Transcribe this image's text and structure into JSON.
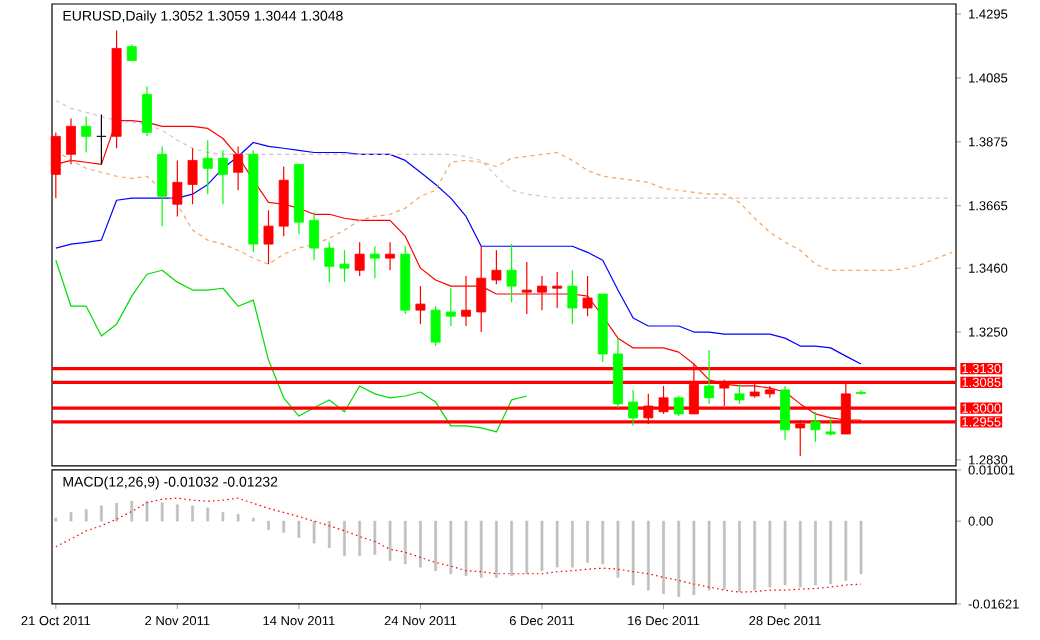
{
  "chart_data": [
    {
      "type": "candlestick",
      "title": "EURUSD,Daily  1.3052 1.3059 1.3044 1.3048",
      "categories": [
        null,
        null,
        null,
        null,
        null,
        null,
        null,
        null,
        null,
        null,
        null,
        null,
        null,
        null,
        null,
        null,
        null,
        null,
        null,
        null,
        null,
        null,
        null,
        null,
        null,
        null,
        null,
        null,
        null,
        null,
        null,
        null,
        null,
        null,
        null,
        null,
        null,
        null,
        null,
        null,
        null,
        null,
        null,
        null,
        null,
        null,
        null,
        null,
        null,
        null,
        null,
        null,
        null,
        null,
        null,
        null,
        null,
        null,
        null,
        null
      ],
      "ohlc": [
        [
          1.3768,
          1.3906,
          1.369,
          1.3893
        ],
        [
          1.3834,
          1.3952,
          1.3801,
          1.3926
        ],
        [
          1.3926,
          1.3958,
          1.384,
          1.3893
        ],
        [
          1.3893,
          1.3965,
          1.3801,
          1.3893
        ],
        [
          1.3893,
          1.4241,
          1.3854,
          1.4182
        ],
        [
          1.4188,
          1.4195,
          1.4142,
          1.4142
        ],
        [
          1.4031,
          1.4057,
          1.3893,
          1.3906
        ],
        [
          1.3834,
          1.386,
          1.3598,
          1.3696
        ],
        [
          1.367,
          1.3814,
          1.363,
          1.3742
        ],
        [
          1.3735,
          1.3854,
          1.367,
          1.3814
        ],
        [
          1.3821,
          1.388,
          1.3703,
          1.3788
        ],
        [
          1.3821,
          1.3847,
          1.367,
          1.3768
        ],
        [
          1.3775,
          1.386,
          1.3716,
          1.3834
        ],
        [
          1.3834,
          1.3847,
          1.3512,
          1.3539
        ],
        [
          1.3539,
          1.365,
          1.3473,
          1.3598
        ],
        [
          1.3598,
          1.3794,
          1.3565,
          1.3749
        ],
        [
          1.3801,
          1.3801,
          1.3571,
          1.3611
        ],
        [
          1.3617,
          1.3644,
          1.3486,
          1.3526
        ],
        [
          1.3526,
          1.3545,
          1.3414,
          1.3466
        ],
        [
          1.3473,
          1.3519,
          1.3414,
          1.346
        ],
        [
          1.3453,
          1.3545,
          1.3434,
          1.3506
        ],
        [
          1.3506,
          1.3532,
          1.3427,
          1.3493
        ],
        [
          1.3493,
          1.3545,
          1.3453,
          1.3506
        ],
        [
          1.3506,
          1.3532,
          1.3309,
          1.3322
        ],
        [
          1.3322,
          1.3401,
          1.3276,
          1.3342
        ],
        [
          1.3322,
          1.3335,
          1.3204,
          1.3217
        ],
        [
          1.3316,
          1.3394,
          1.327,
          1.3302
        ],
        [
          1.3302,
          1.3434,
          1.327,
          1.3322
        ],
        [
          1.3316,
          1.3532,
          1.325,
          1.3427
        ],
        [
          1.3421,
          1.3519,
          1.3407,
          1.3453
        ],
        [
          1.3453,
          1.3539,
          1.3348,
          1.3401
        ],
        [
          1.3381,
          1.348,
          1.3309,
          1.3388
        ],
        [
          1.3381,
          1.3434,
          1.3322,
          1.3401
        ],
        [
          1.3394,
          1.3447,
          1.3329,
          1.3401
        ],
        [
          1.3401,
          1.3453,
          1.3276,
          1.3329
        ],
        [
          1.3329,
          1.3434,
          1.3302,
          1.3362
        ],
        [
          1.3375,
          1.3375,
          1.3152,
          1.3178
        ],
        [
          1.3178,
          1.323,
          1.3001,
          1.3014
        ],
        [
          1.302,
          1.306,
          1.2942,
          1.2968
        ],
        [
          1.2968,
          1.3047,
          1.2948,
          1.3007
        ],
        [
          1.2988,
          1.3073,
          1.2981,
          1.3034
        ],
        [
          1.3034,
          1.304,
          1.2974,
          1.2981
        ],
        [
          1.2981,
          1.3145,
          1.2981,
          1.3079
        ],
        [
          1.3073,
          1.3191,
          1.3014,
          1.3034
        ],
        [
          1.3066,
          1.3093,
          1.3007,
          1.3079
        ],
        [
          1.3047,
          1.3079,
          1.3014,
          1.3027
        ],
        [
          1.304,
          1.3079,
          1.3034,
          1.3053
        ],
        [
          1.3047,
          1.3073,
          1.3034,
          1.306
        ],
        [
          1.306,
          1.3073,
          1.2896,
          1.2929
        ],
        [
          1.2935,
          1.2961,
          1.2843,
          1.2948
        ],
        [
          1.2955,
          1.2988,
          1.2889,
          1.2929
        ],
        [
          1.2922,
          1.2968,
          1.2909,
          1.2915
        ],
        [
          1.2915,
          1.3079,
          1.2915,
          1.3047
        ],
        [
          1.3052,
          1.3059,
          1.3044,
          1.3048
        ],
        null,
        null,
        null,
        null,
        null,
        null
      ],
      "colors": [
        "#ff0000",
        "#ff0000",
        "#00ff00",
        "#000000",
        "#ff0000",
        "#00ff00",
        "#00ff00",
        "#00ff00",
        "#ff0000",
        "#ff0000",
        "#00ff00",
        "#00ff00",
        "#ff0000",
        "#00ff00",
        "#ff0000",
        "#ff0000",
        "#00ff00",
        "#00ff00",
        "#00ff00",
        "#00ff00",
        "#ff0000",
        "#00ff00",
        "#ff0000",
        "#00ff00",
        "#ff0000",
        "#00ff00",
        "#00ff00",
        "#ff0000",
        "#ff0000",
        "#ff0000",
        "#00ff00",
        "#ff0000",
        "#ff0000",
        "#ff0000",
        "#00ff00",
        "#ff0000",
        "#00ff00",
        "#00ff00",
        "#00ff00",
        "#ff0000",
        "#ff0000",
        "#00ff00",
        "#ff0000",
        "#00ff00",
        "#ff0000",
        "#00ff00",
        "#ff0000",
        "#ff0000",
        "#00ff00",
        "#ff0000",
        "#00ff00",
        "#00ff00",
        "#ff0000",
        "#00ff00",
        null,
        null,
        null,
        null,
        null,
        null
      ],
      "series": [
        {
          "type": "line",
          "color": "#ff0000",
          "line_style": "solid",
          "values": [
            1.3801,
            1.3814,
            1.3808,
            1.3801,
            1.3945,
            1.3945,
            1.3939,
            1.3926,
            1.3926,
            1.3926,
            1.3919,
            1.3886,
            1.3827,
            1.3749,
            1.3676,
            1.367,
            1.3657,
            1.3637,
            1.3637,
            1.3624,
            1.3617,
            1.3617,
            1.3617,
            1.3565,
            1.346,
            1.3421,
            1.3401,
            1.3401,
            1.3401,
            1.3375,
            1.3375,
            1.3375,
            1.3375,
            1.3375,
            1.3375,
            1.3368,
            1.3302,
            1.323,
            1.3198,
            1.3198,
            1.3198,
            1.3184,
            1.3145,
            1.3093,
            1.3079,
            1.3073,
            1.3073,
            1.3066,
            1.3053,
            1.3014,
            1.2981,
            1.2968,
            1.2961,
            1.2961,
            null,
            null,
            null,
            null,
            null,
            null
          ]
        },
        {
          "type": "line",
          "color": "#0000ff",
          "line_style": "solid",
          "values": [
            1.3526,
            1.3539,
            1.3545,
            1.3552,
            1.3683,
            1.369,
            1.369,
            1.369,
            1.369,
            1.3703,
            1.3735,
            1.3788,
            1.3827,
            1.3873,
            1.386,
            1.3854,
            1.3847,
            1.384,
            1.384,
            1.384,
            1.3834,
            1.3834,
            1.3834,
            1.3814,
            1.3775,
            1.3735,
            1.369,
            1.363,
            1.3532,
            1.3532,
            1.3532,
            1.3532,
            1.3532,
            1.3532,
            1.3532,
            1.3512,
            1.3486,
            1.3388,
            1.3296,
            1.327,
            1.327,
            1.327,
            1.325,
            1.325,
            1.3243,
            1.3243,
            1.3243,
            1.3243,
            1.323,
            1.3204,
            1.3204,
            1.3198,
            1.3171,
            1.3145,
            null,
            null,
            null,
            null,
            null,
            null
          ]
        },
        {
          "type": "line",
          "color": "#00dd00",
          "line_style": "solid",
          "values": [
            1.3486,
            1.3335,
            1.3335,
            1.3237,
            1.3276,
            1.3368,
            1.344,
            1.3453,
            1.3414,
            1.3388,
            1.3388,
            1.3394,
            1.3335,
            1.3355,
            1.3158,
            1.3034,
            1.2974,
            1.3001,
            1.3027,
            1.2988,
            1.3073,
            1.3047,
            1.3034,
            1.304,
            1.3053,
            1.302,
            1.2942,
            1.2942,
            1.2935,
            1.2922,
            1.3027,
            1.304,
            null,
            null,
            null,
            null,
            null,
            null,
            null,
            null,
            null,
            null,
            null,
            null,
            null,
            null,
            null,
            null,
            null,
            null,
            null,
            null,
            null,
            null,
            null,
            null,
            null,
            null,
            null,
            null
          ]
        },
        {
          "type": "line",
          "color": "#f4a460",
          "line_style": "dashed",
          "values": [
            1.3847,
            1.3814,
            1.3788,
            1.3775,
            1.3762,
            1.3755,
            1.3762,
            1.3716,
            1.367,
            1.3585,
            1.3552,
            1.3539,
            1.3519,
            1.3493,
            1.3473,
            1.3506,
            1.3526,
            1.3539,
            1.3558,
            1.3585,
            1.3617,
            1.363,
            1.3637,
            1.3657,
            1.3696,
            1.3716,
            1.3808,
            1.3814,
            1.3808,
            1.3794,
            1.3821,
            1.3827,
            1.3834,
            1.384,
            1.3814,
            1.3781,
            1.3762,
            1.3755,
            1.3749,
            1.3742,
            1.3722,
            1.3716,
            1.3709,
            1.3703,
            1.3703,
            1.3676,
            1.3624,
            1.3578,
            1.3545,
            1.3519,
            1.3473,
            1.3453,
            1.3453,
            1.3453,
            1.3453,
            1.3453,
            1.346,
            1.3473,
            1.3493,
            1.3512
          ]
        },
        {
          "type": "line",
          "color": "#d8bfd8",
          "line_style": "dashed",
          "values": [
            1.4011,
            1.3985,
            1.3972,
            1.3958,
            1.3945,
            1.3939,
            1.3932,
            1.3913,
            1.388,
            1.3854,
            1.384,
            1.3834,
            1.3834,
            1.3834,
            1.3834,
            1.3834,
            1.3834,
            1.3834,
            1.3834,
            1.3834,
            1.3834,
            1.3834,
            1.3834,
            1.3834,
            1.3834,
            1.3834,
            1.3834,
            1.3827,
            1.3814,
            1.3762,
            1.3716,
            1.3703,
            1.3696,
            1.369,
            1.369,
            1.369,
            1.369,
            1.369,
            1.369,
            1.369,
            1.369,
            1.369,
            1.369,
            1.369,
            1.369,
            1.369,
            1.369,
            1.369,
            1.369,
            1.369,
            1.369,
            1.369,
            1.369,
            1.369,
            1.369,
            1.369,
            1.369,
            1.369,
            1.369,
            1.369
          ]
        }
      ],
      "ref_lines": [
        {
          "axis": "y",
          "value": 1.313,
          "label": "1.3130",
          "color": "#ff0000"
        },
        {
          "axis": "y",
          "value": 1.3085,
          "label": "1.3085",
          "color": "#ff0000"
        },
        {
          "axis": "y",
          "value": 1.3,
          "label": "1.3000",
          "color": "#ff0000"
        },
        {
          "axis": "y",
          "value": 1.2955,
          "label": "1.2955",
          "color": "#ff0000"
        }
      ],
      "ylim": [
        1.281,
        1.4328
      ],
      "yticks": [
        {
          "value": 1.283,
          "label": "1.2830"
        },
        {
          "value": 1.325,
          "label": "1.3250"
        },
        {
          "value": 1.346,
          "label": "1.3460"
        },
        1.3665,
        1.3875,
        1.4085,
        1.4295
      ],
      "tick_labels": "y"
    },
    {
      "type": "bar",
      "title": "MACD(12,26,9) -0.01032 -0.01232",
      "categories": [
        "21 Oct 2011",
        null,
        null,
        null,
        null,
        null,
        null,
        null,
        "2 Nov 2011",
        null,
        null,
        null,
        null,
        null,
        null,
        null,
        "14 Nov 2011",
        null,
        null,
        null,
        null,
        null,
        null,
        null,
        "24 Nov 2011",
        null,
        null,
        null,
        null,
        null,
        null,
        null,
        "6 Dec 2011",
        null,
        null,
        null,
        null,
        null,
        null,
        null,
        "16 Dec 2011",
        null,
        null,
        null,
        null,
        null,
        null,
        null,
        "28 Dec 2011",
        null,
        null,
        null,
        null,
        null,
        null,
        null,
        null,
        null,
        null,
        null
      ],
      "series": [
        {
          "type": "bar",
          "color": "#c0c0c0",
          "values": [
            0.0006,
            0.0017,
            0.0023,
            0.003,
            0.0035,
            0.0039,
            0.0039,
            0.0036,
            0.0032,
            0.003,
            0.0026,
            0.0017,
            0.0013,
            0.0006,
            -0.0017,
            -0.0022,
            -0.0032,
            -0.0043,
            -0.0052,
            -0.0068,
            -0.0068,
            -0.0065,
            -0.0077,
            -0.0084,
            -0.009,
            -0.0097,
            -0.0103,
            -0.0107,
            -0.011,
            -0.011,
            -0.0107,
            -0.0103,
            -0.0097,
            -0.009,
            -0.009,
            -0.0081,
            -0.0084,
            -0.011,
            -0.0125,
            -0.0135,
            -0.0142,
            -0.0148,
            -0.0144,
            -0.0135,
            -0.0133,
            -0.0138,
            -0.0135,
            -0.0129,
            -0.0125,
            -0.0129,
            -0.0125,
            -0.0123,
            -0.0116,
            -0.01032,
            null,
            null,
            null,
            null,
            null,
            null
          ]
        },
        {
          "type": "line",
          "color": "#ff0000",
          "line_style": "dotted",
          "values": [
            -0.005,
            -0.0035,
            -0.0019,
            -0.0009,
            0.0004,
            0.0019,
            0.0036,
            0.0043,
            0.0045,
            0.0041,
            0.0039,
            0.0041,
            0.0045,
            0.0035,
            0.0025,
            0.0017,
            0.0009,
            0.0,
            -0.0009,
            -0.0019,
            -0.003,
            -0.004,
            -0.0055,
            -0.0061,
            -0.0071,
            -0.0081,
            -0.0088,
            -0.0097,
            -0.0099,
            -0.0103,
            -0.0103,
            -0.0103,
            -0.0103,
            -0.0099,
            -0.0097,
            -0.0094,
            -0.0092,
            -0.0094,
            -0.0099,
            -0.0103,
            -0.011,
            -0.0116,
            -0.0123,
            -0.0129,
            -0.0135,
            -0.0139,
            -0.0138,
            -0.0135,
            -0.0135,
            -0.0133,
            -0.0132,
            -0.0129,
            -0.0125,
            -0.01232,
            null,
            null,
            null,
            null,
            null,
            null
          ]
        }
      ],
      "ylim": [
        -0.01621,
        0.01001
      ],
      "yticks": [
        -0.01621,
        {
          "value": 0,
          "label": "0.00"
        },
        0.01001
      ]
    }
  ]
}
